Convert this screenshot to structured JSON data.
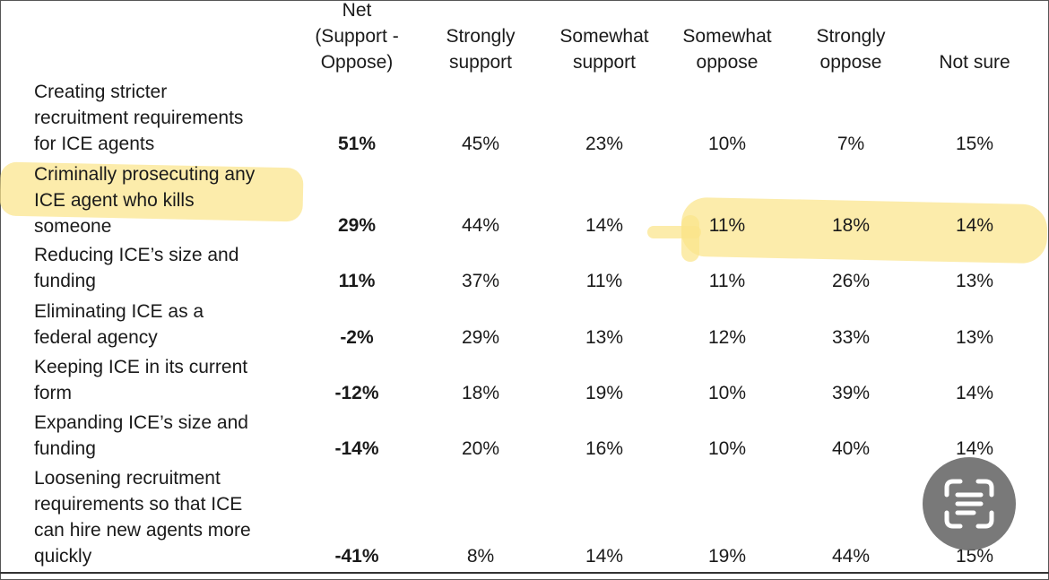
{
  "table": {
    "columns": [
      "Net\n(Support -\nOppose)",
      "Strongly\nsupport",
      "Somewhat\nsupport",
      "Somewhat\noppose",
      "Strongly\noppose",
      "Not sure"
    ],
    "rows": [
      {
        "label": "Creating stricter\nrecruitment requirements\nfor ICE agents",
        "values": [
          "51%",
          "45%",
          "23%",
          "10%",
          "7%",
          "15%"
        ]
      },
      {
        "label": "Criminally prosecuting any\nICE agent who kills\nsomeone",
        "values": [
          "29%",
          "44%",
          "14%",
          "11%",
          "18%",
          "14%"
        ]
      },
      {
        "label": "Reducing ICE’s size and\nfunding",
        "values": [
          "11%",
          "37%",
          "11%",
          "11%",
          "26%",
          "13%"
        ]
      },
      {
        "label": "Eliminating ICE as a\nfederal agency",
        "values": [
          "-2%",
          "29%",
          "13%",
          "12%",
          "33%",
          "13%"
        ]
      },
      {
        "label": "Keeping ICE in its current\nform",
        "values": [
          "-12%",
          "18%",
          "19%",
          "10%",
          "39%",
          "14%"
        ]
      },
      {
        "label": "Expanding ICE’s size and\nfunding",
        "values": [
          "-14%",
          "20%",
          "16%",
          "10%",
          "40%",
          "14%"
        ]
      },
      {
        "label": "Loosening recruitment\nrequirements so that ICE\ncan hire new agents more\nquickly",
        "values": [
          "-41%",
          "8%",
          "14%",
          "19%",
          "44%",
          "15%"
        ]
      }
    ]
  },
  "highlight_color": "#fbe48a",
  "overlay": {
    "icon": "scan-text-icon",
    "color": "#6f6f6f"
  }
}
